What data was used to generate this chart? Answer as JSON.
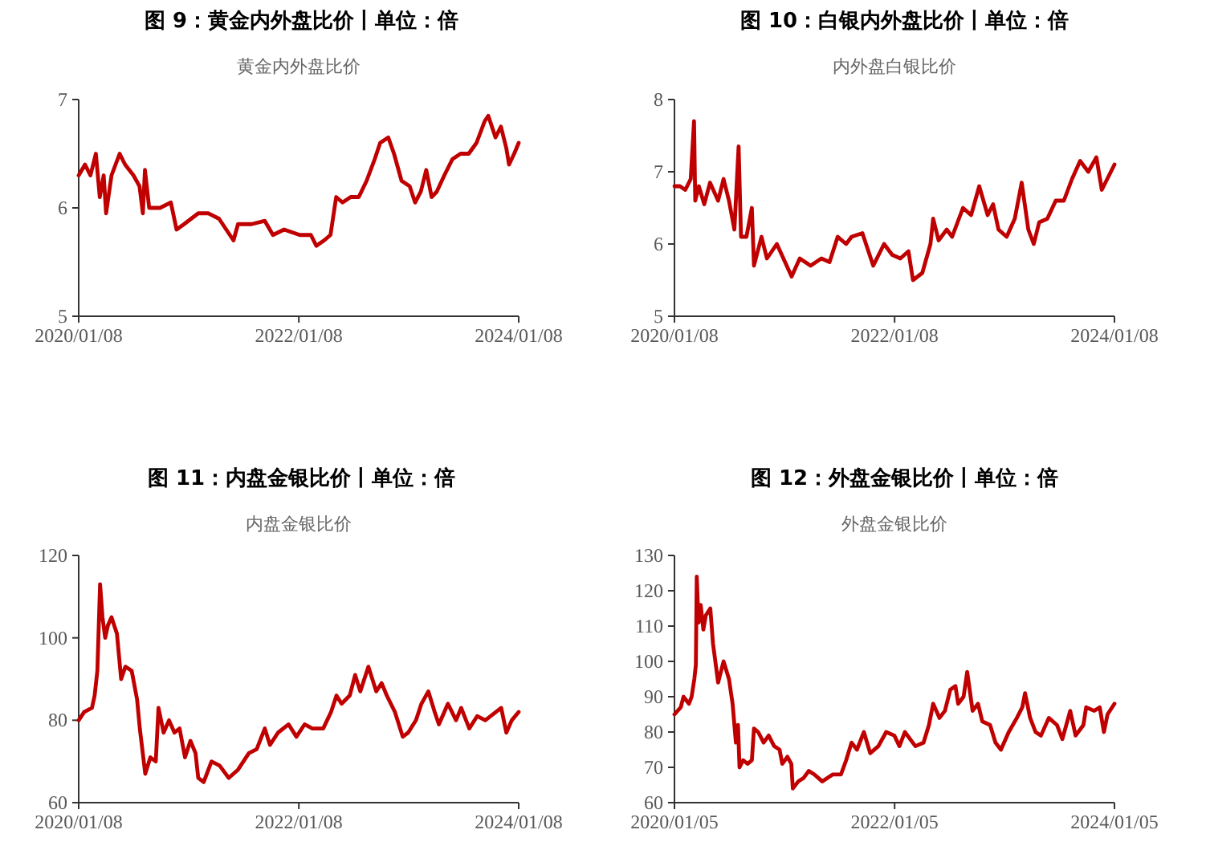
{
  "chart_data": [
    {
      "type": "line",
      "title": "图 9：黄金内外盘比价丨单位：倍",
      "subtitle": "黄金内外盘比价",
      "xlim": [
        "2020-01-08",
        "2024-01-08"
      ],
      "xticks": [
        {
          "value": "2020-01-08",
          "label": "2020/01/08"
        },
        {
          "value": "2022-01-08",
          "label": "2022/01/08"
        },
        {
          "value": "2024-01-08",
          "label": "2024/01/08"
        }
      ],
      "ylim": [
        5,
        7
      ],
      "yticks": [
        5,
        6,
        7
      ],
      "grid": false,
      "series": [
        {
          "color": "#c00000",
          "x": [
            "2020-01-08",
            "2020-01-29",
            "2020-02-16",
            "2020-03-05",
            "2020-03-18",
            "2020-03-31",
            "2020-04-08",
            "2020-04-26",
            "2020-05-23",
            "2020-06-10",
            "2020-07-08",
            "2020-07-28",
            "2020-08-08",
            "2020-08-15",
            "2020-08-29",
            "2020-10-04",
            "2020-11-09",
            "2020-11-28",
            "2020-12-23",
            "2021-02-08",
            "2021-03-14",
            "2021-04-18",
            "2021-06-05",
            "2021-06-20",
            "2021-08-04",
            "2021-09-17",
            "2021-10-14",
            "2021-11-20",
            "2022-01-11",
            "2022-02-17",
            "2022-03-07",
            "2022-04-02",
            "2022-04-23",
            "2022-05-12",
            "2022-06-02",
            "2022-06-29",
            "2022-07-26",
            "2022-08-21",
            "2022-09-17",
            "2022-10-05",
            "2022-11-01",
            "2022-11-20",
            "2022-12-15",
            "2023-01-11",
            "2023-01-29",
            "2023-02-17",
            "2023-03-07",
            "2023-03-25",
            "2023-04-11",
            "2023-05-06",
            "2023-06-02",
            "2023-06-29",
            "2023-07-26",
            "2023-08-21",
            "2023-09-17",
            "2023-09-29",
            "2023-10-23",
            "2023-11-10",
            "2023-11-28",
            "2023-12-07",
            "2023-12-24",
            "2024-01-08"
          ],
          "values": [
            6.3,
            6.4,
            6.3,
            6.5,
            6.1,
            6.3,
            5.95,
            6.3,
            6.5,
            6.4,
            6.3,
            6.2,
            5.95,
            6.35,
            6.0,
            6.0,
            6.05,
            5.8,
            5.85,
            5.95,
            5.95,
            5.9,
            5.7,
            5.85,
            5.85,
            5.88,
            5.75,
            5.8,
            5.75,
            5.75,
            5.65,
            5.7,
            5.75,
            6.1,
            6.05,
            6.1,
            6.1,
            6.25,
            6.45,
            6.6,
            6.65,
            6.5,
            6.25,
            6.2,
            6.05,
            6.15,
            6.35,
            6.1,
            6.15,
            6.3,
            6.45,
            6.5,
            6.5,
            6.6,
            6.8,
            6.85,
            6.65,
            6.75,
            6.55,
            6.4,
            6.5,
            6.6
          ]
        }
      ]
    },
    {
      "type": "line",
      "title": "图 10：白银内外盘比价丨单位：倍",
      "subtitle": "内外盘白银比价",
      "xlim": [
        "2020-01-08",
        "2024-01-08"
      ],
      "xticks": [
        {
          "value": "2020-01-08",
          "label": "2020/01/08"
        },
        {
          "value": "2022-01-08",
          "label": "2022/01/08"
        },
        {
          "value": "2024-01-08",
          "label": "2024/01/08"
        }
      ],
      "ylim": [
        5,
        8
      ],
      "yticks": [
        5,
        6,
        7,
        8
      ],
      "grid": false,
      "series": [
        {
          "color": "#c00000",
          "x": [
            "2020-01-08",
            "2020-01-26",
            "2020-02-13",
            "2020-03-02",
            "2020-03-13",
            "2020-03-17",
            "2020-03-29",
            "2020-04-16",
            "2020-05-05",
            "2020-06-01",
            "2020-06-19",
            "2020-07-07",
            "2020-07-25",
            "2020-08-08",
            "2020-08-16",
            "2020-09-03",
            "2020-09-21",
            "2020-09-28",
            "2020-10-23",
            "2020-11-10",
            "2020-12-13",
            "2021-01-31",
            "2021-02-27",
            "2021-04-04",
            "2021-05-10",
            "2021-06-06",
            "2021-07-03",
            "2021-07-31",
            "2021-08-18",
            "2021-09-23",
            "2021-10-29",
            "2021-12-04",
            "2021-12-31",
            "2022-01-27",
            "2022-02-23",
            "2022-03-10",
            "2022-04-10",
            "2022-05-07",
            "2022-05-16",
            "2022-06-03",
            "2022-06-30",
            "2022-07-18",
            "2022-08-23",
            "2022-09-19",
            "2022-10-16",
            "2022-11-13",
            "2022-12-01",
            "2022-12-19",
            "2023-01-15",
            "2023-02-11",
            "2023-03-06",
            "2023-03-28",
            "2023-04-15",
            "2023-05-03",
            "2023-05-30",
            "2023-06-27",
            "2023-07-24",
            "2023-08-20",
            "2023-09-16",
            "2023-10-13",
            "2023-11-09",
            "2023-11-27",
            "2023-12-15",
            "2024-01-08"
          ],
          "values": [
            6.8,
            6.8,
            6.75,
            6.9,
            7.7,
            6.6,
            6.8,
            6.55,
            6.85,
            6.6,
            6.9,
            6.6,
            6.2,
            7.35,
            6.1,
            6.1,
            6.5,
            5.7,
            6.1,
            5.8,
            6.0,
            5.55,
            5.8,
            5.7,
            5.8,
            5.75,
            6.1,
            6.0,
            6.1,
            6.15,
            5.7,
            6.0,
            5.85,
            5.8,
            5.9,
            5.5,
            5.6,
            6.0,
            6.35,
            6.05,
            6.2,
            6.1,
            6.5,
            6.4,
            6.8,
            6.4,
            6.55,
            6.2,
            6.1,
            6.35,
            6.85,
            6.2,
            6.0,
            6.3,
            6.35,
            6.6,
            6.6,
            6.9,
            7.15,
            7.0,
            7.2,
            6.75,
            6.9,
            7.1
          ]
        }
      ]
    },
    {
      "type": "line",
      "title": "图 11：内盘金银比价丨单位：倍",
      "subtitle": "内盘金银比价",
      "xlim": [
        "2020-01-08",
        "2024-01-08"
      ],
      "xticks": [
        {
          "value": "2020-01-08",
          "label": "2020/01/08"
        },
        {
          "value": "2022-01-08",
          "label": "2022/01/08"
        },
        {
          "value": "2024-01-08",
          "label": "2024/01/08"
        }
      ],
      "ylim": [
        60,
        120
      ],
      "yticks": [
        60,
        80,
        100,
        120
      ],
      "grid": false,
      "series": [
        {
          "color": "#c00000",
          "x": [
            "2020-01-08",
            "2020-01-26",
            "2020-02-21",
            "2020-03-01",
            "2020-03-10",
            "2020-03-19",
            "2020-03-27",
            "2020-04-05",
            "2020-04-14",
            "2020-04-26",
            "2020-05-14",
            "2020-05-28",
            "2020-06-11",
            "2020-07-02",
            "2020-07-20",
            "2020-07-29",
            "2020-08-16",
            "2020-09-02",
            "2020-09-20",
            "2020-09-29",
            "2020-10-16",
            "2020-11-03",
            "2020-11-21",
            "2020-12-08",
            "2020-12-26",
            "2021-01-13",
            "2021-01-30",
            "2021-02-08",
            "2021-02-26",
            "2021-03-24",
            "2021-04-20",
            "2021-05-20",
            "2021-06-20",
            "2021-07-26",
            "2021-08-21",
            "2021-09-17",
            "2021-10-04",
            "2021-10-31",
            "2021-12-05",
            "2021-12-31",
            "2022-01-27",
            "2022-02-22",
            "2022-03-30",
            "2022-04-25",
            "2022-05-13",
            "2022-05-30",
            "2022-06-26",
            "2022-07-14",
            "2022-07-31",
            "2022-08-27",
            "2022-09-22",
            "2022-10-10",
            "2022-10-27",
            "2022-11-23",
            "2022-12-19",
            "2023-01-06",
            "2023-02-01",
            "2023-02-19",
            "2023-03-14",
            "2023-04-04",
            "2023-04-18",
            "2023-05-18",
            "2023-06-14",
            "2023-07-01",
            "2023-07-28",
            "2023-08-23",
            "2023-09-19",
            "2023-10-24",
            "2023-11-11",
            "2023-11-28",
            "2023-12-16",
            "2024-01-08"
          ],
          "values": [
            80,
            82,
            83,
            86,
            92,
            113,
            105,
            100,
            103,
            105,
            101,
            90,
            93,
            92,
            85,
            78,
            67,
            71,
            70,
            83,
            77,
            80,
            77,
            78,
            71,
            75,
            72,
            66,
            65,
            70,
            69,
            66,
            68,
            72,
            73,
            78,
            74,
            77,
            79,
            76,
            79,
            78,
            78,
            82,
            86,
            84,
            86,
            91,
            87,
            93,
            87,
            89,
            86,
            82,
            76,
            77,
            80,
            84,
            87,
            82,
            79,
            84,
            80,
            83,
            78,
            81,
            80,
            82,
            83,
            77,
            80,
            82
          ]
        }
      ]
    },
    {
      "type": "line",
      "title": "图 12：外盘金银比价丨单位：倍",
      "subtitle": "外盘金银比价",
      "xlim": [
        "2020-01-05",
        "2024-01-05"
      ],
      "xticks": [
        {
          "value": "2020-01-05",
          "label": "2020/01/05"
        },
        {
          "value": "2022-01-05",
          "label": "2022/01/05"
        },
        {
          "value": "2024-01-05",
          "label": "2024/01/05"
        }
      ],
      "ylim": [
        60,
        130
      ],
      "yticks": [
        60,
        70,
        80,
        90,
        100,
        110,
        120,
        130
      ],
      "grid": false,
      "series": [
        {
          "color": "#c00000",
          "x": [
            "2020-01-05",
            "2020-01-26",
            "2020-02-04",
            "2020-02-22",
            "2020-03-02",
            "2020-03-11",
            "2020-03-16",
            "2020-03-19",
            "2020-03-25",
            "2020-04-01",
            "2020-04-10",
            "2020-04-18",
            "2020-05-03",
            "2020-05-12",
            "2020-05-29",
            "2020-06-16",
            "2020-07-04",
            "2020-07-16",
            "2020-07-27",
            "2020-08-03",
            "2020-08-08",
            "2020-08-20",
            "2020-09-04",
            "2020-09-18",
            "2020-09-25",
            "2020-10-09",
            "2020-10-27",
            "2020-11-13",
            "2020-12-01",
            "2020-12-19",
            "2020-12-28",
            "2021-01-14",
            "2021-01-27",
            "2021-02-01",
            "2021-02-19",
            "2021-03-09",
            "2021-03-26",
            "2021-04-13",
            "2021-05-10",
            "2021-06-14",
            "2021-07-11",
            "2021-07-28",
            "2021-08-15",
            "2021-09-02",
            "2021-09-25",
            "2021-10-16",
            "2021-11-12",
            "2021-12-08",
            "2022-01-04",
            "2022-01-21",
            "2022-02-08",
            "2022-03-15",
            "2022-04-11",
            "2022-04-29",
            "2022-05-13",
            "2022-06-03",
            "2022-06-21",
            "2022-07-09",
            "2022-07-26",
            "2022-08-04",
            "2022-08-22",
            "2022-09-03",
            "2022-09-21",
            "2022-10-09",
            "2022-10-23",
            "2022-11-18",
            "2022-12-06",
            "2022-12-24",
            "2023-01-19",
            "2023-02-15",
            "2023-03-05",
            "2023-03-14",
            "2023-03-31",
            "2023-04-18",
            "2023-05-06",
            "2023-06-01",
            "2023-06-28",
            "2023-07-16",
            "2023-08-11",
            "2023-08-29",
            "2023-09-24",
            "2023-10-03",
            "2023-10-30",
            "2023-11-17",
            "2023-12-01",
            "2023-12-13",
            "2024-01-05"
          ],
          "values": [
            85,
            87,
            90,
            88,
            90,
            95,
            99,
            124,
            111,
            116,
            109,
            113,
            115,
            105,
            94,
            100,
            95,
            88,
            77,
            82,
            70,
            72,
            71,
            72,
            81,
            80,
            77,
            79,
            76,
            75,
            71,
            73,
            71,
            64,
            66,
            67,
            69,
            68,
            66,
            68,
            68,
            72,
            77,
            75,
            80,
            74,
            76,
            80,
            79,
            76,
            80,
            76,
            77,
            82,
            88,
            84,
            86,
            92,
            93,
            88,
            90,
            97,
            86,
            88,
            83,
            82,
            77,
            75,
            80,
            84,
            87,
            91,
            84,
            80,
            79,
            84,
            82,
            78,
            86,
            79,
            82,
            87,
            86,
            87,
            80,
            85,
            88
          ]
        }
      ]
    }
  ]
}
